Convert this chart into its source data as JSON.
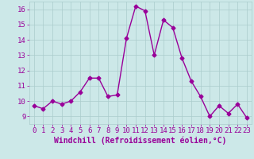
{
  "x": [
    0,
    1,
    2,
    3,
    4,
    5,
    6,
    7,
    8,
    9,
    10,
    11,
    12,
    13,
    14,
    15,
    16,
    17,
    18,
    19,
    20,
    21,
    22,
    23
  ],
  "y": [
    9.7,
    9.5,
    10.0,
    9.8,
    10.0,
    10.6,
    11.5,
    11.5,
    10.3,
    10.4,
    14.1,
    16.2,
    15.9,
    13.0,
    15.3,
    14.8,
    12.8,
    11.3,
    10.3,
    9.0,
    9.7,
    9.2,
    9.8,
    8.9
  ],
  "line_color": "#990099",
  "marker": "D",
  "marker_size": 2.5,
  "bg_color": "#cce8e8",
  "grid_color": "#aacccc",
  "xlabel": "Windchill (Refroidissement éolien,°C)",
  "tick_color": "#990099",
  "ylim": [
    8.5,
    16.5
  ],
  "xlim": [
    -0.5,
    23.5
  ],
  "yticks": [
    9,
    10,
    11,
    12,
    13,
    14,
    15,
    16
  ],
  "xticks": [
    0,
    1,
    2,
    3,
    4,
    5,
    6,
    7,
    8,
    9,
    10,
    11,
    12,
    13,
    14,
    15,
    16,
    17,
    18,
    19,
    20,
    21,
    22,
    23
  ],
  "xlabel_fontsize": 7,
  "tick_fontsize": 6.5,
  "line_width": 1.0
}
